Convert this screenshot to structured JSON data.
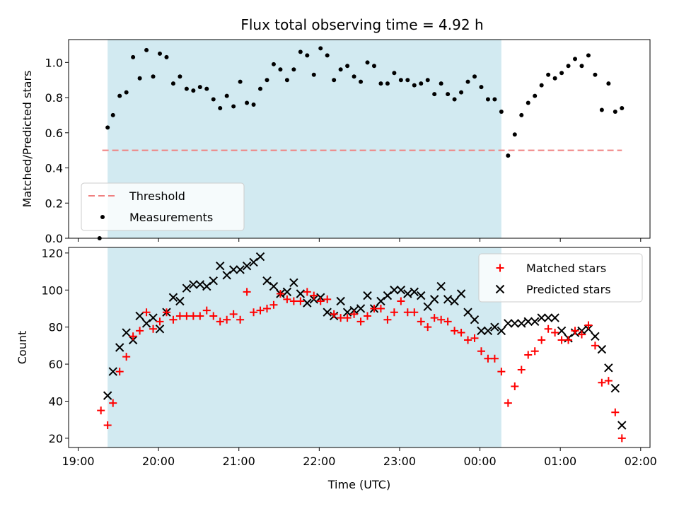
{
  "title": "Flux total observing time = 4.92 h",
  "colors": {
    "shade": "#add8e6",
    "threshold": "#f08080",
    "matched": "#ff0000",
    "predicted": "#000000",
    "measurement": "#000000"
  },
  "chart_data": [
    {
      "type": "scatter",
      "name": "top-panel",
      "xlabel": "",
      "ylabel": "Matched/Predicted stars",
      "xlim": [
        "19:00",
        "02:00"
      ],
      "ylim": [
        0,
        1.13
      ],
      "yticks": [
        "0.0",
        "0.2",
        "0.4",
        "0.6",
        "0.8",
        "1.0"
      ],
      "shaded_interval": [
        "19:22",
        "00:16"
      ],
      "threshold": {
        "name": "Threshold",
        "value": 0.5,
        "x_range": [
          "19:18",
          "01:46"
        ]
      },
      "legend": {
        "placement": "lower-left",
        "entries": [
          "Threshold",
          "Measurements"
        ]
      },
      "series": [
        {
          "name": "Measurements",
          "points": [
            [
              "19:16",
              0.0
            ],
            [
              "19:22",
              0.63
            ],
            [
              "19:26",
              0.7
            ],
            [
              "19:31",
              0.81
            ],
            [
              "19:36",
              0.83
            ],
            [
              "19:41",
              1.03
            ],
            [
              "19:46",
              0.91
            ],
            [
              "19:51",
              1.07
            ],
            [
              "19:56",
              0.92
            ],
            [
              "20:01",
              1.05
            ],
            [
              "20:06",
              1.03
            ],
            [
              "20:11",
              0.88
            ],
            [
              "20:16",
              0.92
            ],
            [
              "20:21",
              0.85
            ],
            [
              "20:26",
              0.84
            ],
            [
              "20:31",
              0.86
            ],
            [
              "20:36",
              0.85
            ],
            [
              "20:41",
              0.79
            ],
            [
              "20:46",
              0.74
            ],
            [
              "20:51",
              0.81
            ],
            [
              "20:56",
              0.75
            ],
            [
              "21:01",
              0.89
            ],
            [
              "21:06",
              0.77
            ],
            [
              "21:11",
              0.76
            ],
            [
              "21:16",
              0.85
            ],
            [
              "21:21",
              0.9
            ],
            [
              "21:26",
              0.99
            ],
            [
              "21:31",
              0.96
            ],
            [
              "21:36",
              0.9
            ],
            [
              "21:41",
              0.96
            ],
            [
              "21:46",
              1.06
            ],
            [
              "21:51",
              1.04
            ],
            [
              "21:56",
              0.93
            ],
            [
              "22:01",
              1.08
            ],
            [
              "22:06",
              1.04
            ],
            [
              "22:11",
              0.9
            ],
            [
              "22:16",
              0.96
            ],
            [
              "22:21",
              0.98
            ],
            [
              "22:26",
              0.92
            ],
            [
              "22:31",
              0.89
            ],
            [
              "22:36",
              1.0
            ],
            [
              "22:41",
              0.98
            ],
            [
              "22:46",
              0.88
            ],
            [
              "22:51",
              0.88
            ],
            [
              "22:56",
              0.94
            ],
            [
              "23:01",
              0.9
            ],
            [
              "23:06",
              0.9
            ],
            [
              "23:11",
              0.87
            ],
            [
              "23:16",
              0.88
            ],
            [
              "23:21",
              0.9
            ],
            [
              "23:26",
              0.82
            ],
            [
              "23:31",
              0.88
            ],
            [
              "23:36",
              0.82
            ],
            [
              "23:41",
              0.79
            ],
            [
              "23:46",
              0.83
            ],
            [
              "23:51",
              0.89
            ],
            [
              "23:56",
              0.92
            ],
            [
              "00:01",
              0.86
            ],
            [
              "00:06",
              0.79
            ],
            [
              "00:11",
              0.79
            ],
            [
              "00:16",
              0.72
            ],
            [
              "00:21",
              0.47
            ],
            [
              "00:26",
              0.59
            ],
            [
              "00:31",
              0.7
            ],
            [
              "00:36",
              0.77
            ],
            [
              "00:41",
              0.81
            ],
            [
              "00:46",
              0.87
            ],
            [
              "00:51",
              0.93
            ],
            [
              "00:56",
              0.91
            ],
            [
              "01:01",
              0.94
            ],
            [
              "01:06",
              0.98
            ],
            [
              "01:11",
              1.02
            ],
            [
              "01:16",
              0.98
            ],
            [
              "01:21",
              1.04
            ],
            [
              "01:26",
              0.93
            ],
            [
              "01:31",
              0.73
            ],
            [
              "01:36",
              0.88
            ],
            [
              "01:41",
              0.72
            ],
            [
              "01:46",
              0.74
            ]
          ]
        }
      ]
    },
    {
      "type": "scatter",
      "name": "bottom-panel",
      "xlabel": "Time (UTC)",
      "ylabel": "Count",
      "xlim": [
        "19:00",
        "02:00"
      ],
      "ylim": [
        15,
        123
      ],
      "xticks": [
        "19:00",
        "20:00",
        "21:00",
        "22:00",
        "23:00",
        "00:00",
        "01:00",
        "02:00"
      ],
      "yticks": [
        "20",
        "40",
        "60",
        "80",
        "100",
        "120"
      ],
      "shaded_interval": [
        "19:22",
        "00:16"
      ],
      "legend": {
        "placement": "upper-right",
        "entries": [
          "Matched stars",
          "Predicted stars"
        ]
      },
      "series": [
        {
          "name": "Matched stars",
          "marker": "plus",
          "points": [
            [
              "19:17",
              35
            ],
            [
              "19:22",
              27
            ],
            [
              "19:26",
              39
            ],
            [
              "19:31",
              56
            ],
            [
              "19:36",
              64
            ],
            [
              "19:41",
              75
            ],
            [
              "19:46",
              78
            ],
            [
              "19:51",
              88
            ],
            [
              "19:56",
              79
            ],
            [
              "20:01",
              83
            ],
            [
              "20:06",
              88
            ],
            [
              "20:11",
              84
            ],
            [
              "20:16",
              86
            ],
            [
              "20:21",
              86
            ],
            [
              "20:26",
              86
            ],
            [
              "20:31",
              86
            ],
            [
              "20:36",
              89
            ],
            [
              "20:41",
              86
            ],
            [
              "20:46",
              83
            ],
            [
              "20:51",
              84
            ],
            [
              "20:56",
              87
            ],
            [
              "21:01",
              84
            ],
            [
              "21:06",
              99
            ],
            [
              "21:11",
              88
            ],
            [
              "21:16",
              89
            ],
            [
              "21:21",
              90
            ],
            [
              "21:26",
              92
            ],
            [
              "21:31",
              98
            ],
            [
              "21:36",
              95
            ],
            [
              "21:41",
              94
            ],
            [
              "21:46",
              94
            ],
            [
              "21:51",
              99
            ],
            [
              "21:56",
              97
            ],
            [
              "22:01",
              94
            ],
            [
              "22:06",
              95
            ],
            [
              "22:11",
              87
            ],
            [
              "22:16",
              85
            ],
            [
              "22:21",
              85
            ],
            [
              "22:26",
              87
            ],
            [
              "22:31",
              83
            ],
            [
              "22:36",
              86
            ],
            [
              "22:41",
              90
            ],
            [
              "22:46",
              90
            ],
            [
              "22:51",
              84
            ],
            [
              "22:56",
              88
            ],
            [
              "23:01",
              94
            ],
            [
              "23:06",
              88
            ],
            [
              "23:11",
              88
            ],
            [
              "23:16",
              83
            ],
            [
              "23:21",
              80
            ],
            [
              "23:26",
              85
            ],
            [
              "23:31",
              84
            ],
            [
              "23:36",
              83
            ],
            [
              "23:41",
              78
            ],
            [
              "23:46",
              77
            ],
            [
              "23:51",
              73
            ],
            [
              "23:56",
              74
            ],
            [
              "00:01",
              67
            ],
            [
              "00:06",
              63
            ],
            [
              "00:11",
              63
            ],
            [
              "00:16",
              56
            ],
            [
              "00:21",
              39
            ],
            [
              "00:26",
              48
            ],
            [
              "00:31",
              57
            ],
            [
              "00:36",
              65
            ],
            [
              "00:41",
              67
            ],
            [
              "00:46",
              73
            ],
            [
              "00:51",
              79
            ],
            [
              "00:56",
              77
            ],
            [
              "01:01",
              73
            ],
            [
              "01:06",
              73
            ],
            [
              "01:11",
              78
            ],
            [
              "01:16",
              76
            ],
            [
              "01:21",
              81
            ],
            [
              "01:26",
              70
            ],
            [
              "01:31",
              50
            ],
            [
              "01:36",
              51
            ],
            [
              "01:41",
              34
            ],
            [
              "01:46",
              20
            ]
          ]
        },
        {
          "name": "Predicted stars",
          "marker": "x",
          "points": [
            [
              "19:22",
              43
            ],
            [
              "19:26",
              56
            ],
            [
              "19:31",
              69
            ],
            [
              "19:36",
              77
            ],
            [
              "19:41",
              73
            ],
            [
              "19:46",
              86
            ],
            [
              "19:51",
              82
            ],
            [
              "19:56",
              85
            ],
            [
              "20:01",
              79
            ],
            [
              "20:06",
              88
            ],
            [
              "20:11",
              96
            ],
            [
              "20:16",
              94
            ],
            [
              "20:21",
              101
            ],
            [
              "20:26",
              103
            ],
            [
              "20:31",
              103
            ],
            [
              "20:36",
              102
            ],
            [
              "20:41",
              105
            ],
            [
              "20:46",
              113
            ],
            [
              "20:51",
              108
            ],
            [
              "20:56",
              111
            ],
            [
              "21:01",
              111
            ],
            [
              "21:06",
              113
            ],
            [
              "21:11",
              115
            ],
            [
              "21:16",
              118
            ],
            [
              "21:21",
              105
            ],
            [
              "21:26",
              102
            ],
            [
              "21:31",
              98
            ],
            [
              "21:36",
              99
            ],
            [
              "21:41",
              104
            ],
            [
              "21:46",
              98
            ],
            [
              "21:51",
              93
            ],
            [
              "21:56",
              95
            ],
            [
              "22:01",
              96
            ],
            [
              "22:06",
              88
            ],
            [
              "22:11",
              86
            ],
            [
              "22:16",
              94
            ],
            [
              "22:21",
              88
            ],
            [
              "22:26",
              89
            ],
            [
              "22:31",
              90
            ],
            [
              "22:36",
              97
            ],
            [
              "22:41",
              90
            ],
            [
              "22:46",
              94
            ],
            [
              "22:51",
              97
            ],
            [
              "22:56",
              100
            ],
            [
              "23:01",
              100
            ],
            [
              "23:06",
              98
            ],
            [
              "23:11",
              99
            ],
            [
              "23:16",
              97
            ],
            [
              "23:21",
              91
            ],
            [
              "23:26",
              95
            ],
            [
              "23:31",
              102
            ],
            [
              "23:36",
              95
            ],
            [
              "23:41",
              94
            ],
            [
              "23:46",
              98
            ],
            [
              "23:51",
              88
            ],
            [
              "23:56",
              84
            ],
            [
              "00:01",
              78
            ],
            [
              "00:06",
              78
            ],
            [
              "00:11",
              80
            ],
            [
              "00:16",
              78
            ],
            [
              "00:21",
              82
            ],
            [
              "00:26",
              82
            ],
            [
              "00:31",
              82
            ],
            [
              "00:36",
              83
            ],
            [
              "00:41",
              83
            ],
            [
              "00:46",
              85
            ],
            [
              "00:51",
              85
            ],
            [
              "00:56",
              85
            ],
            [
              "01:01",
              78
            ],
            [
              "01:06",
              74
            ],
            [
              "01:11",
              77
            ],
            [
              "01:16",
              78
            ],
            [
              "01:21",
              79
            ],
            [
              "01:26",
              75
            ],
            [
              "01:31",
              68
            ],
            [
              "01:36",
              58
            ],
            [
              "01:41",
              47
            ],
            [
              "01:46",
              27
            ]
          ]
        }
      ]
    }
  ]
}
